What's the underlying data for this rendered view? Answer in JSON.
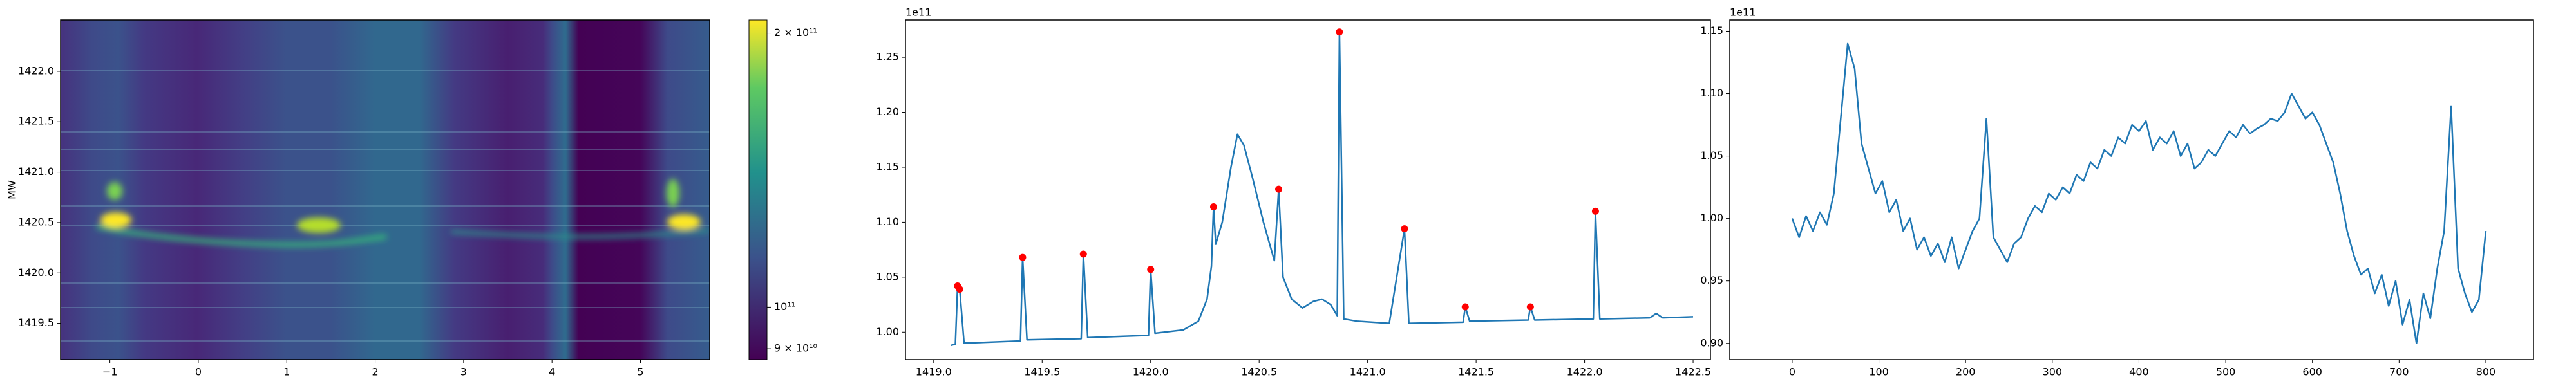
{
  "chart_data": [
    {
      "type": "heatmap",
      "ylabel": "MW",
      "xlim": [
        -1.558,
        5.783
      ],
      "ylim": [
        1419.14,
        1422.51
      ],
      "xticks": [
        {
          "value": -1,
          "label": "−1"
        },
        0,
        1,
        2,
        3,
        4,
        5
      ],
      "yticks": [
        {
          "value": 1419.5,
          "label": "1419.5"
        },
        {
          "value": 1420.0,
          "label": "1420.0"
        },
        {
          "value": 1420.5,
          "label": "1420.5"
        },
        {
          "value": 1421.0,
          "label": "1421.0"
        },
        {
          "value": 1421.5,
          "label": "1421.5"
        },
        {
          "value": 1422.0,
          "label": "1422.0"
        }
      ],
      "colorbar": {
        "clim": [
          87560000000,
          206800000000
        ],
        "log": true,
        "ticks": [
          {
            "value": 90000000000,
            "label": "9 × 10¹⁰"
          },
          {
            "value": 100000000000,
            "label": "10¹¹"
          },
          {
            "value": 200000000000,
            "label": "2 × 10¹¹"
          }
        ]
      }
    },
    {
      "type": "line",
      "offset_label": "1e11",
      "color": "#1f77b4",
      "xlim": [
        1418.87,
        1422.58
      ],
      "ylim": [
        0.975,
        1.284
      ],
      "xticks": [
        {
          "value": 1419.0,
          "label": "1419.0"
        },
        {
          "value": 1419.5,
          "label": "1419.5"
        },
        {
          "value": 1420.0,
          "label": "1420.0"
        },
        {
          "value": 1420.5,
          "label": "1420.5"
        },
        {
          "value": 1421.0,
          "label": "1421.0"
        },
        {
          "value": 1421.5,
          "label": "1421.5"
        },
        {
          "value": 1422.0,
          "label": "1422.0"
        },
        {
          "value": 1422.5,
          "label": "1422.5"
        }
      ],
      "yticks": [
        {
          "value": 1.0,
          "label": "1.00"
        },
        {
          "value": 1.05,
          "label": "1.05"
        },
        {
          "value": 1.1,
          "label": "1.10"
        },
        {
          "value": 1.15,
          "label": "1.15"
        },
        {
          "value": 1.2,
          "label": "1.20"
        },
        {
          "value": 1.25,
          "label": "1.25"
        }
      ],
      "x": [
        1419.08,
        1419.1,
        1419.11,
        1419.12,
        1419.14,
        1419.4,
        1419.41,
        1419.43,
        1419.68,
        1419.69,
        1419.71,
        1419.99,
        1420.0,
        1420.02,
        1420.15,
        1420.22,
        1420.26,
        1420.28,
        1420.29,
        1420.3,
        1420.33,
        1420.37,
        1420.4,
        1420.43,
        1420.47,
        1420.52,
        1420.57,
        1420.59,
        1420.61,
        1420.65,
        1420.7,
        1420.75,
        1420.79,
        1420.83,
        1420.86,
        1420.87,
        1420.89,
        1420.95,
        1421.1,
        1421.17,
        1421.19,
        1421.44,
        1421.45,
        1421.47,
        1421.74,
        1421.75,
        1421.77,
        1422.04,
        1422.05,
        1422.07,
        1422.3,
        1422.33,
        1422.36,
        1422.5
      ],
      "values": [
        0.988,
        0.989,
        1.042,
        1.039,
        0.99,
        0.992,
        1.068,
        0.993,
        0.994,
        1.071,
        0.995,
        0.997,
        1.057,
        0.999,
        1.002,
        1.01,
        1.03,
        1.06,
        1.114,
        1.08,
        1.1,
        1.15,
        1.18,
        1.17,
        1.14,
        1.1,
        1.065,
        1.13,
        1.05,
        1.03,
        1.022,
        1.028,
        1.03,
        1.025,
        1.015,
        1.273,
        1.012,
        1.01,
        1.008,
        1.094,
        1.008,
        1.009,
        1.023,
        1.01,
        1.011,
        1.023,
        1.011,
        1.012,
        1.11,
        1.012,
        1.013,
        1.017,
        1.013,
        1.014
      ],
      "peaks": {
        "color": "#ff0000",
        "x": [
          1419.11,
          1419.12,
          1419.41,
          1419.69,
          1420.0,
          1420.29,
          1420.59,
          1420.87,
          1421.17,
          1421.45,
          1421.75,
          1422.05
        ],
        "values": [
          1.042,
          1.039,
          1.068,
          1.071,
          1.057,
          1.114,
          1.13,
          1.273,
          1.094,
          1.023,
          1.023,
          1.11
        ]
      }
    },
    {
      "type": "line",
      "offset_label": "1e11",
      "color": "#1f77b4",
      "xlim": [
        -72,
        855
      ],
      "ylim": [
        0.887,
        1.159
      ],
      "xticks": [
        0,
        100,
        200,
        300,
        400,
        500,
        600,
        700,
        800
      ],
      "yticks": [
        {
          "value": 0.9,
          "label": "0.90"
        },
        {
          "value": 0.95,
          "label": "0.95"
        },
        {
          "value": 1.0,
          "label": "1.00"
        },
        {
          "value": 1.05,
          "label": "1.05"
        },
        {
          "value": 1.1,
          "label": "1.10"
        },
        {
          "value": 1.15,
          "label": "1.15"
        }
      ],
      "x": [
        0,
        8,
        16,
        24,
        32,
        40,
        48,
        56,
        64,
        72,
        80,
        88,
        96,
        104,
        112,
        120,
        128,
        136,
        144,
        152,
        160,
        168,
        176,
        184,
        192,
        200,
        208,
        216,
        224,
        232,
        240,
        248,
        256,
        264,
        272,
        280,
        288,
        296,
        304,
        312,
        320,
        328,
        336,
        344,
        352,
        360,
        368,
        376,
        384,
        392,
        400,
        408,
        416,
        424,
        432,
        440,
        448,
        456,
        464,
        472,
        480,
        488,
        496,
        504,
        512,
        520,
        528,
        536,
        544,
        552,
        560,
        568,
        576,
        584,
        592,
        600,
        608,
        616,
        624,
        632,
        640,
        648,
        656,
        664,
        672,
        680,
        688,
        696,
        704,
        712,
        720,
        728,
        736,
        744,
        752,
        760,
        768,
        776,
        784,
        792,
        800
      ],
      "values": [
        1.0,
        0.985,
        1.002,
        0.99,
        1.005,
        0.995,
        1.02,
        1.08,
        1.14,
        1.12,
        1.06,
        1.04,
        1.02,
        1.03,
        1.005,
        1.015,
        0.99,
        1.0,
        0.975,
        0.985,
        0.97,
        0.98,
        0.965,
        0.985,
        0.96,
        0.975,
        0.99,
        1.0,
        1.08,
        0.985,
        0.975,
        0.965,
        0.98,
        0.985,
        1.0,
        1.01,
        1.005,
        1.02,
        1.015,
        1.025,
        1.02,
        1.035,
        1.03,
        1.045,
        1.04,
        1.055,
        1.05,
        1.065,
        1.06,
        1.075,
        1.07,
        1.078,
        1.055,
        1.065,
        1.06,
        1.07,
        1.05,
        1.06,
        1.04,
        1.045,
        1.055,
        1.05,
        1.06,
        1.07,
        1.065,
        1.075,
        1.068,
        1.072,
        1.075,
        1.08,
        1.078,
        1.085,
        1.1,
        1.09,
        1.08,
        1.085,
        1.075,
        1.06,
        1.045,
        1.02,
        0.99,
        0.97,
        0.955,
        0.96,
        0.94,
        0.955,
        0.93,
        0.95,
        0.915,
        0.935,
        0.9,
        0.94,
        0.92,
        0.96,
        0.99,
        1.09,
        0.96,
        0.94,
        0.925,
        0.935,
        0.99
      ]
    }
  ]
}
